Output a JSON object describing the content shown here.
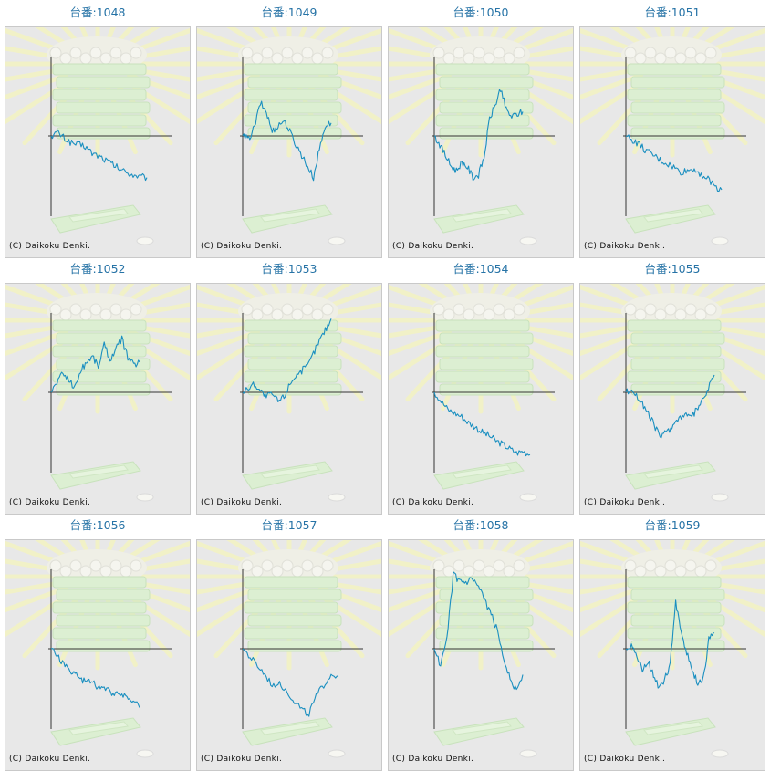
{
  "page": {
    "copyright": "(C) Daikoku Denki.",
    "colors": {
      "title": "#2673a6",
      "line": "#1a8fc0",
      "axis": "#333333",
      "panel": "#e8e8e8"
    }
  },
  "chart_data": [
    {
      "type": "line",
      "title": "台番:1048",
      "values": [
        0,
        4,
        -3,
        -8,
        -10,
        -12,
        -20,
        -23,
        -28,
        -33,
        -38,
        -42,
        -45,
        -47,
        -48
      ]
    },
    {
      "type": "line",
      "title": "台番:1049",
      "values": [
        0,
        -4,
        10,
        38,
        28,
        5,
        12,
        18,
        5,
        -10,
        -22,
        -35,
        -48,
        -15,
        12,
        15
      ]
    },
    {
      "type": "line",
      "title": "台番:1050",
      "values": [
        0,
        -10,
        -22,
        -35,
        -40,
        -30,
        -36,
        -48,
        -45,
        -25,
        20,
        35,
        55,
        30,
        22,
        25,
        28
      ]
    },
    {
      "type": "line",
      "title": "台番:1051",
      "values": [
        0,
        -5,
        -10,
        -18,
        -22,
        -28,
        -32,
        -36,
        -42,
        -40,
        -38,
        -44,
        -50,
        -58,
        -62
      ]
    },
    {
      "type": "line",
      "title": "台番:1052",
      "values": [
        0,
        12,
        22,
        15,
        5,
        25,
        35,
        42,
        30,
        55,
        38,
        50,
        62,
        40,
        32,
        35
      ]
    },
    {
      "type": "line",
      "title": "台番:1053",
      "values": [
        0,
        5,
        10,
        2,
        -5,
        -2,
        -10,
        -5,
        10,
        20,
        25,
        30,
        45,
        60,
        72,
        85
      ]
    },
    {
      "type": "line",
      "title": "台番:1054",
      "values": [
        0,
        -10,
        -20,
        -24,
        -28,
        -35,
        -40,
        -46,
        -50,
        -56,
        -60,
        -65,
        -70,
        -68,
        -72
      ]
    },
    {
      "type": "line",
      "title": "台番:1055",
      "values": [
        0,
        4,
        -6,
        -15,
        -28,
        -40,
        -52,
        -45,
        -38,
        -30,
        -25,
        -30,
        -20,
        -10,
        5,
        20
      ]
    },
    {
      "type": "line",
      "title": "台番:1056",
      "values": [
        0,
        -8,
        -18,
        -25,
        -30,
        -38,
        -35,
        -42,
        -45,
        -48,
        -52,
        -50,
        -56,
        -60,
        -68
      ]
    },
    {
      "type": "line",
      "title": "台番:1057",
      "values": [
        0,
        -10,
        -20,
        -30,
        -42,
        -38,
        -50,
        -60,
        -70,
        -75,
        -55,
        -42,
        -30,
        -32
      ]
    },
    {
      "type": "line",
      "title": "台番:1058",
      "values": [
        0,
        -20,
        10,
        85,
        78,
        75,
        80,
        70,
        55,
        40,
        20,
        -10,
        -35,
        -48,
        -30
      ]
    },
    {
      "type": "line",
      "title": "台番:1059",
      "values": [
        0,
        5,
        -10,
        -25,
        -15,
        -30,
        -45,
        -35,
        -20,
        55,
        20,
        -5,
        -25,
        -40,
        -35,
        10,
        18
      ]
    }
  ]
}
